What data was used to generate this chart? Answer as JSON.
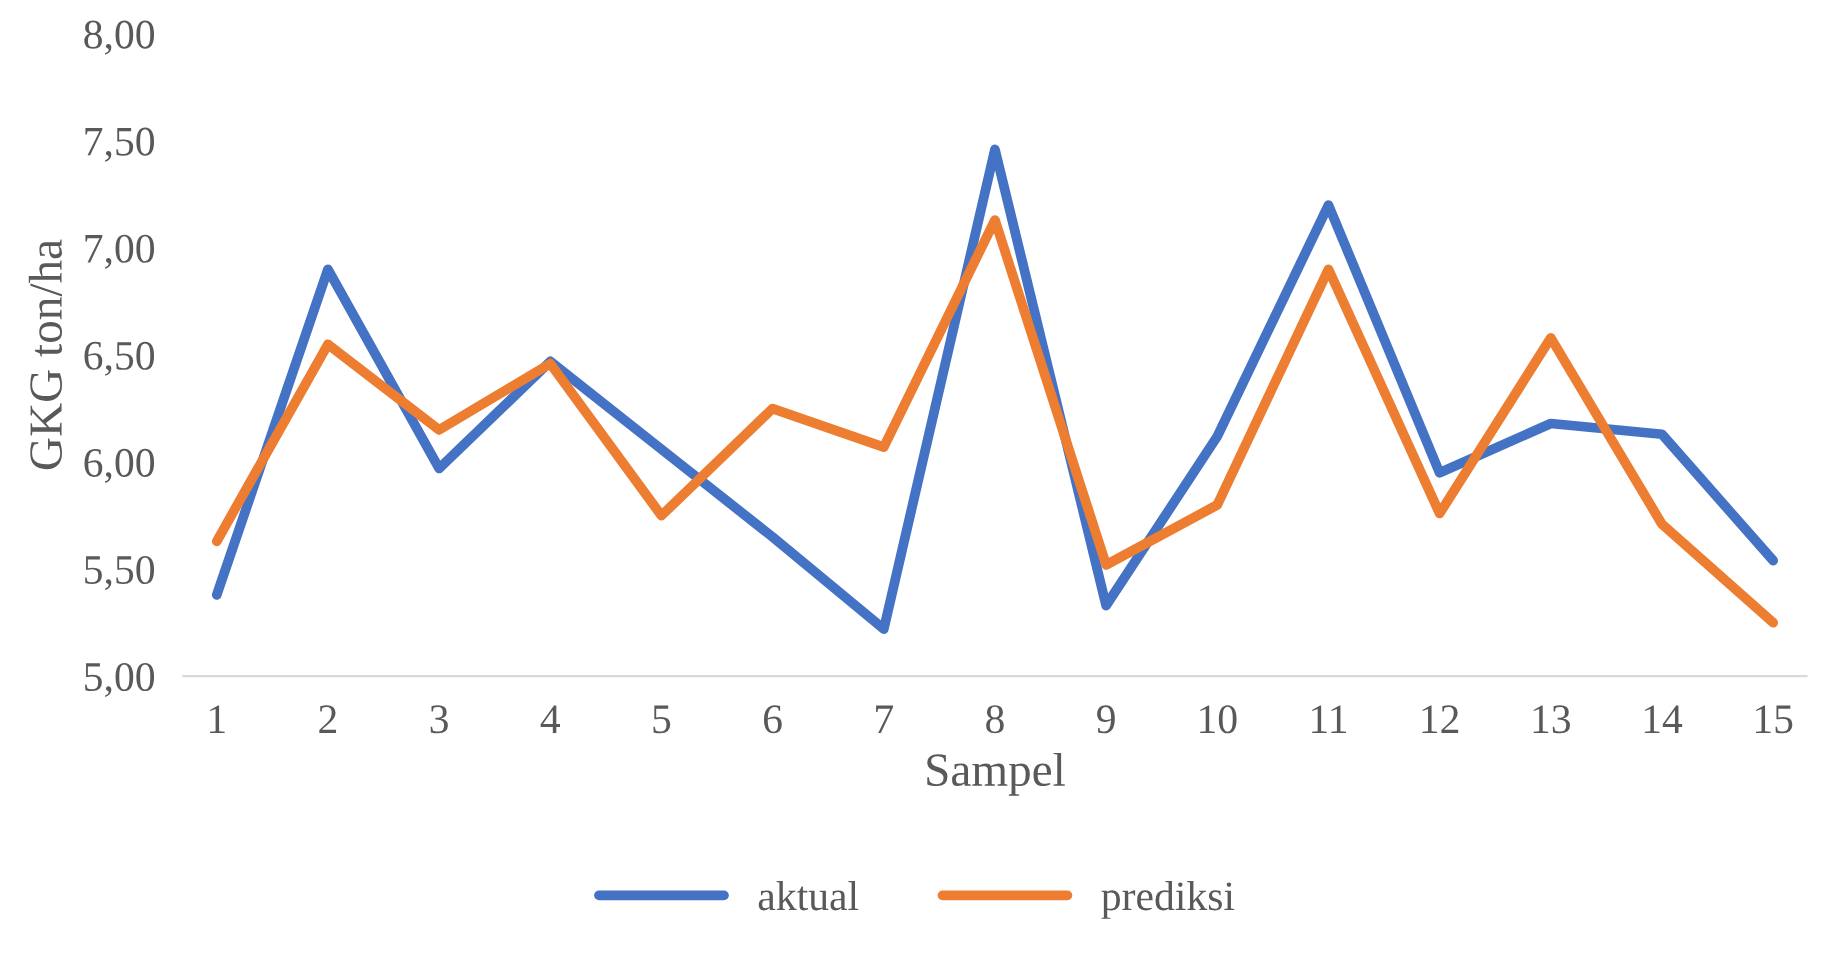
{
  "chart_data": {
    "type": "line",
    "xlabel": "Sampel",
    "ylabel": "GKG ton/ha",
    "categories": [
      "1",
      "2",
      "3",
      "4",
      "5",
      "6",
      "7",
      "8",
      "9",
      "10",
      "11",
      "12",
      "13",
      "14",
      "15"
    ],
    "series": [
      {
        "name": "aktual",
        "color": "#4472c4",
        "values": [
          5.38,
          6.9,
          5.97,
          6.47,
          6.06,
          5.65,
          5.22,
          7.46,
          5.33,
          6.12,
          7.2,
          5.95,
          6.18,
          6.13,
          5.54
        ]
      },
      {
        "name": "prediksi",
        "color": "#ed7d31",
        "values": [
          5.63,
          6.55,
          6.15,
          6.46,
          5.75,
          6.25,
          6.07,
          7.13,
          5.52,
          5.8,
          6.9,
          5.76,
          6.58,
          5.71,
          5.25
        ]
      }
    ],
    "ylim": [
      5,
      8
    ],
    "yticks": [
      {
        "value": 5,
        "label": "5,00"
      },
      {
        "value": 5.5,
        "label": "5,50"
      },
      {
        "value": 6,
        "label": "6,00"
      },
      {
        "value": 6.5,
        "label": "6,50"
      },
      {
        "value": 7,
        "label": "7,00"
      },
      {
        "value": 7.5,
        "label": "7,50"
      },
      {
        "value": 8,
        "label": "8,00"
      }
    ],
    "grid": false,
    "legend": "bottom",
    "marker": "none",
    "line_style": "solid"
  }
}
